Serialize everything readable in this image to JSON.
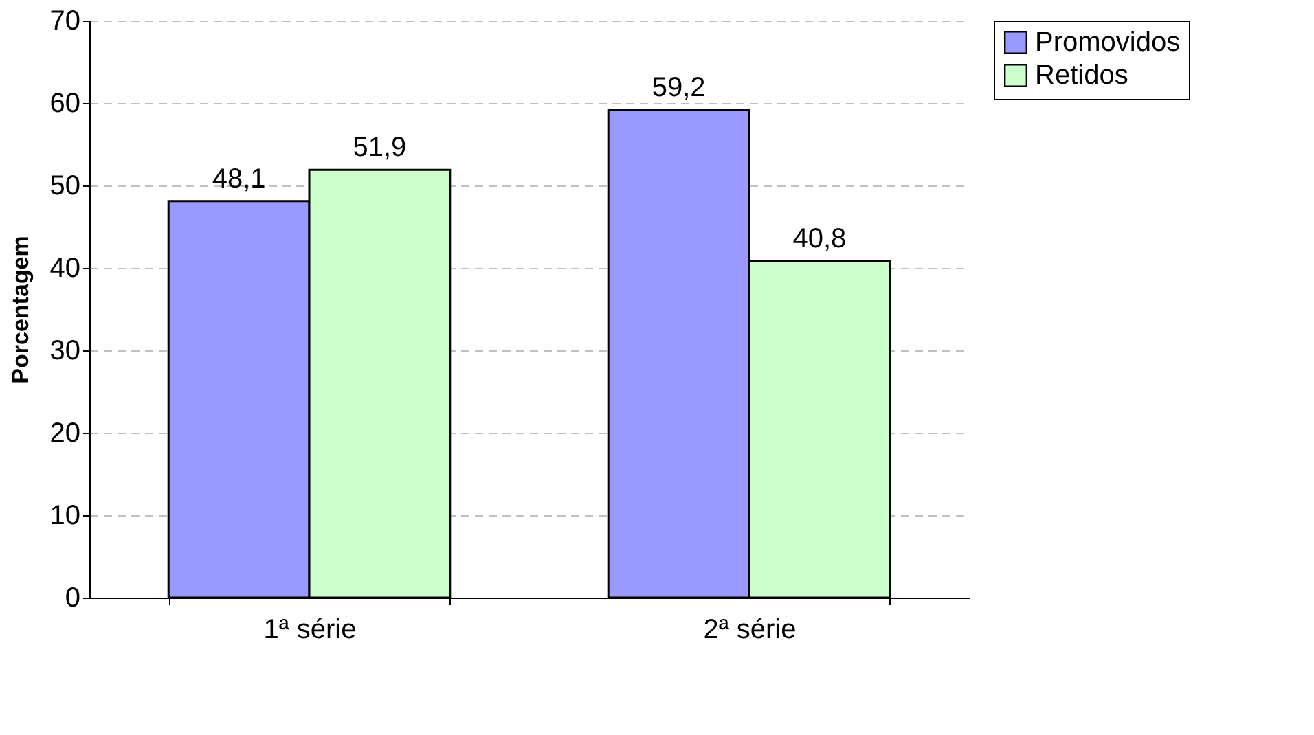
{
  "chart_data": {
    "type": "bar",
    "ylabel": "Porcentagem",
    "categories": [
      "1ª série",
      "2ª série"
    ],
    "series": [
      {
        "name": "Promovidos",
        "color": "#9999ff",
        "values": [
          48.1,
          59.2
        ],
        "value_labels": [
          "48,1",
          "59,2"
        ]
      },
      {
        "name": "Retidos",
        "color": "#ccffcc",
        "values": [
          51.9,
          40.8
        ],
        "value_labels": [
          "51,9",
          "40,8"
        ]
      }
    ],
    "ylim": [
      0,
      70
    ],
    "yticks": [
      0,
      10,
      20,
      30,
      40,
      50,
      60,
      70
    ],
    "grid": "y",
    "legend": "right"
  }
}
